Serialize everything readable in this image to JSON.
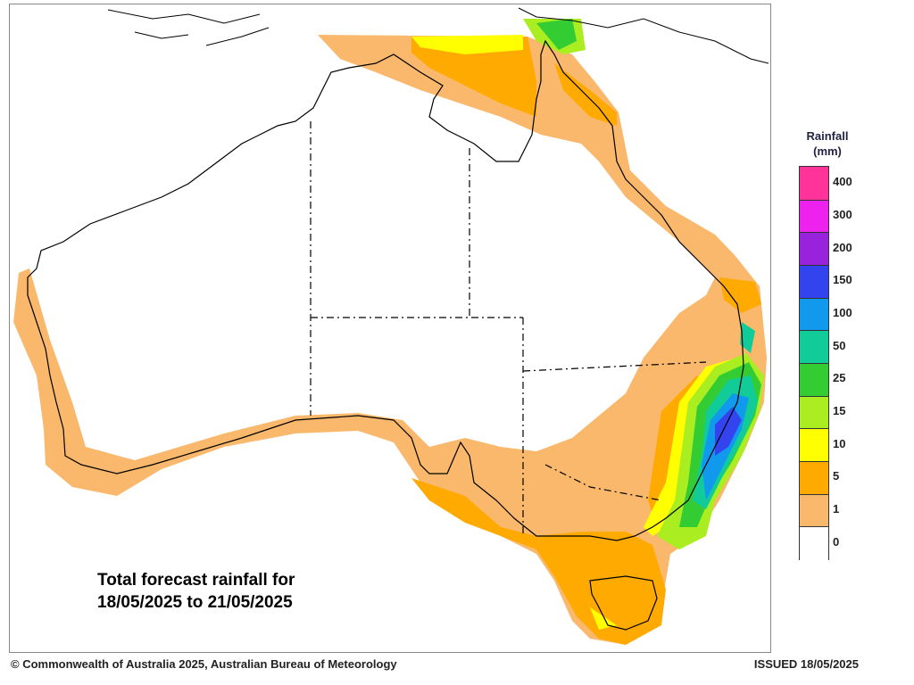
{
  "title_line1": "Total forecast rainfall for",
  "title_line2": "18/05/2025 to 21/05/2025",
  "legend": {
    "title_line1": "Rainfall",
    "title_line2": "(mm)",
    "bands": [
      {
        "label": "400",
        "color": "#ff3399"
      },
      {
        "label": "300",
        "color": "#ee22ee"
      },
      {
        "label": "200",
        "color": "#9922dd"
      },
      {
        "label": "150",
        "color": "#3344ee"
      },
      {
        "label": "100",
        "color": "#1199ee"
      },
      {
        "label": "50",
        "color": "#11cc99"
      },
      {
        "label": "25",
        "color": "#33cc33"
      },
      {
        "label": "15",
        "color": "#aaee22"
      },
      {
        "label": "10",
        "color": "#ffff00"
      },
      {
        "label": "5",
        "color": "#ffaa00"
      },
      {
        "label": "1",
        "color": "#f9b86b"
      },
      {
        "label": "0",
        "color": "#ffffff"
      }
    ]
  },
  "footer": {
    "copyright": "© Commonwealth of Australia 2025, Australian Bureau of Meteorology",
    "issued": "ISSUED 18/05/2025"
  }
}
